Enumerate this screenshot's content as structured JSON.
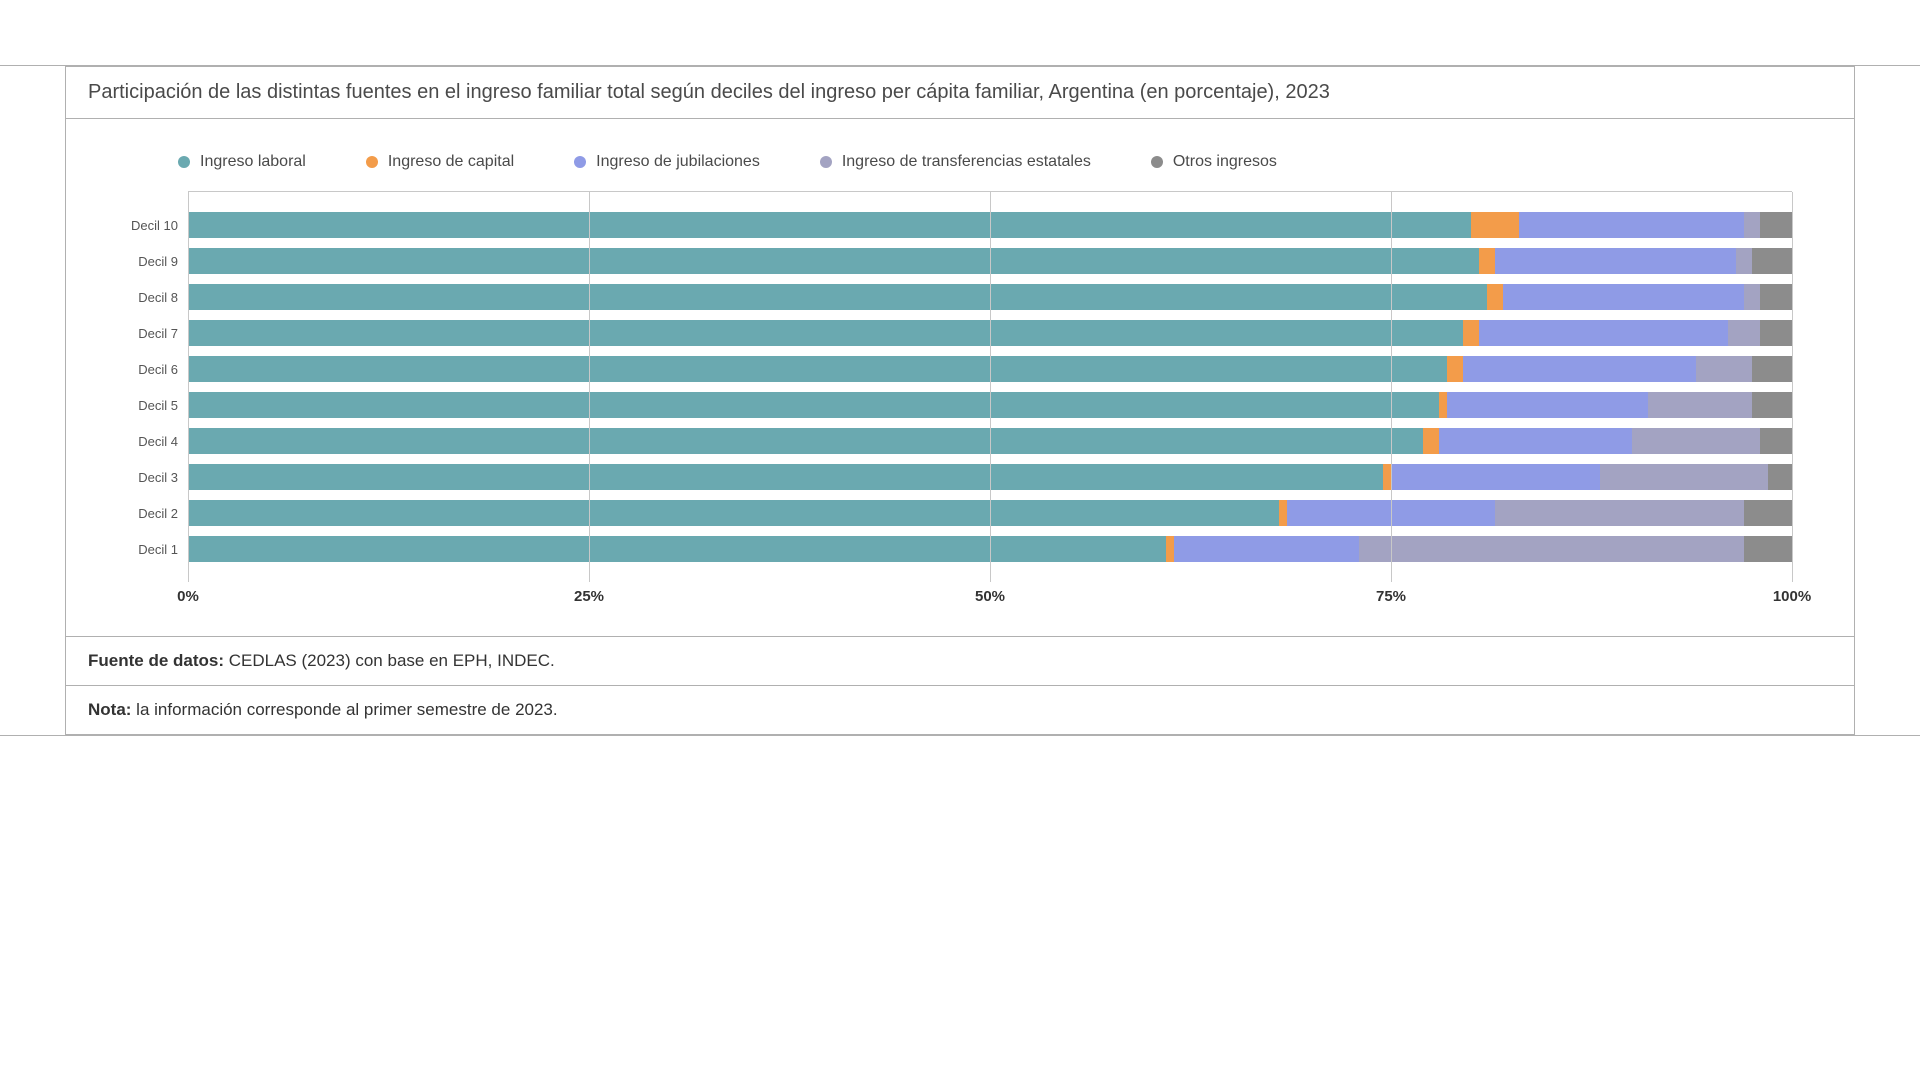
{
  "chart": {
    "type": "stacked-bar-horizontal",
    "title": "Participación de las distintas fuentes en el ingreso familiar total según deciles del ingreso per cápita familiar, Argentina (en porcentaje), 2023",
    "background_color": "#ffffff",
    "grid_color": "#c8c8c8",
    "border_color": "#b0b0b0",
    "title_fontsize": 20,
    "label_fontsize": 13,
    "axis_fontsize": 15,
    "legend_fontsize": 16,
    "xlim": [
      0,
      100
    ],
    "xticks": [
      {
        "value": 0,
        "label": "0%"
      },
      {
        "value": 25,
        "label": "25%"
      },
      {
        "value": 50,
        "label": "50%"
      },
      {
        "value": 75,
        "label": "75%"
      },
      {
        "value": 100,
        "label": "100%"
      }
    ],
    "series": [
      {
        "key": "laboral",
        "label": "Ingreso laboral",
        "color": "#6aa9b0"
      },
      {
        "key": "capital",
        "label": "Ingreso de capital",
        "color": "#f39c4a"
      },
      {
        "key": "jubilaciones",
        "label": "Ingreso de jubilaciones",
        "color": "#8f9be6"
      },
      {
        "key": "transferencias",
        "label": "Ingreso de transferencias estatales",
        "color": "#a3a3c2"
      },
      {
        "key": "otros",
        "label": "Otros ingresos",
        "color": "#8c8c8c"
      }
    ],
    "rows": [
      {
        "label": "Decil 10",
        "values": {
          "laboral": 80.0,
          "capital": 3.0,
          "jubilaciones": 14.0,
          "transferencias": 1.0,
          "otros": 2.0
        }
      },
      {
        "label": "Decil 9",
        "values": {
          "laboral": 80.5,
          "capital": 1.0,
          "jubilaciones": 15.0,
          "transferencias": 1.0,
          "otros": 2.5
        }
      },
      {
        "label": "Decil 8",
        "values": {
          "laboral": 81.0,
          "capital": 1.0,
          "jubilaciones": 15.0,
          "transferencias": 1.0,
          "otros": 2.0
        }
      },
      {
        "label": "Decil 7",
        "values": {
          "laboral": 79.5,
          "capital": 1.0,
          "jubilaciones": 15.5,
          "transferencias": 2.0,
          "otros": 2.0
        }
      },
      {
        "label": "Decil 6",
        "values": {
          "laboral": 78.5,
          "capital": 1.0,
          "jubilaciones": 14.5,
          "transferencias": 3.5,
          "otros": 2.5
        }
      },
      {
        "label": "Decil 5",
        "values": {
          "laboral": 78.0,
          "capital": 0.5,
          "jubilaciones": 12.5,
          "transferencias": 6.5,
          "otros": 2.5
        }
      },
      {
        "label": "Decil 4",
        "values": {
          "laboral": 77.0,
          "capital": 1.0,
          "jubilaciones": 12.0,
          "transferencias": 8.0,
          "otros": 2.0
        }
      },
      {
        "label": "Decil 3",
        "values": {
          "laboral": 74.5,
          "capital": 0.5,
          "jubilaciones": 13.0,
          "transferencias": 10.5,
          "otros": 1.5
        }
      },
      {
        "label": "Decil 2",
        "values": {
          "laboral": 68.0,
          "capital": 0.5,
          "jubilaciones": 13.0,
          "transferencias": 15.5,
          "otros": 3.0
        }
      },
      {
        "label": "Decil 1",
        "values": {
          "laboral": 61.0,
          "capital": 0.5,
          "jubilaciones": 11.5,
          "transferencias": 24.0,
          "otros": 3.0
        }
      }
    ],
    "source": {
      "label": "Fuente de datos:",
      "text": " CEDLAS (2023) con base en EPH, INDEC."
    },
    "note": {
      "label": "Nota:",
      "text": " la información corresponde al primer semestre de 2023."
    }
  }
}
